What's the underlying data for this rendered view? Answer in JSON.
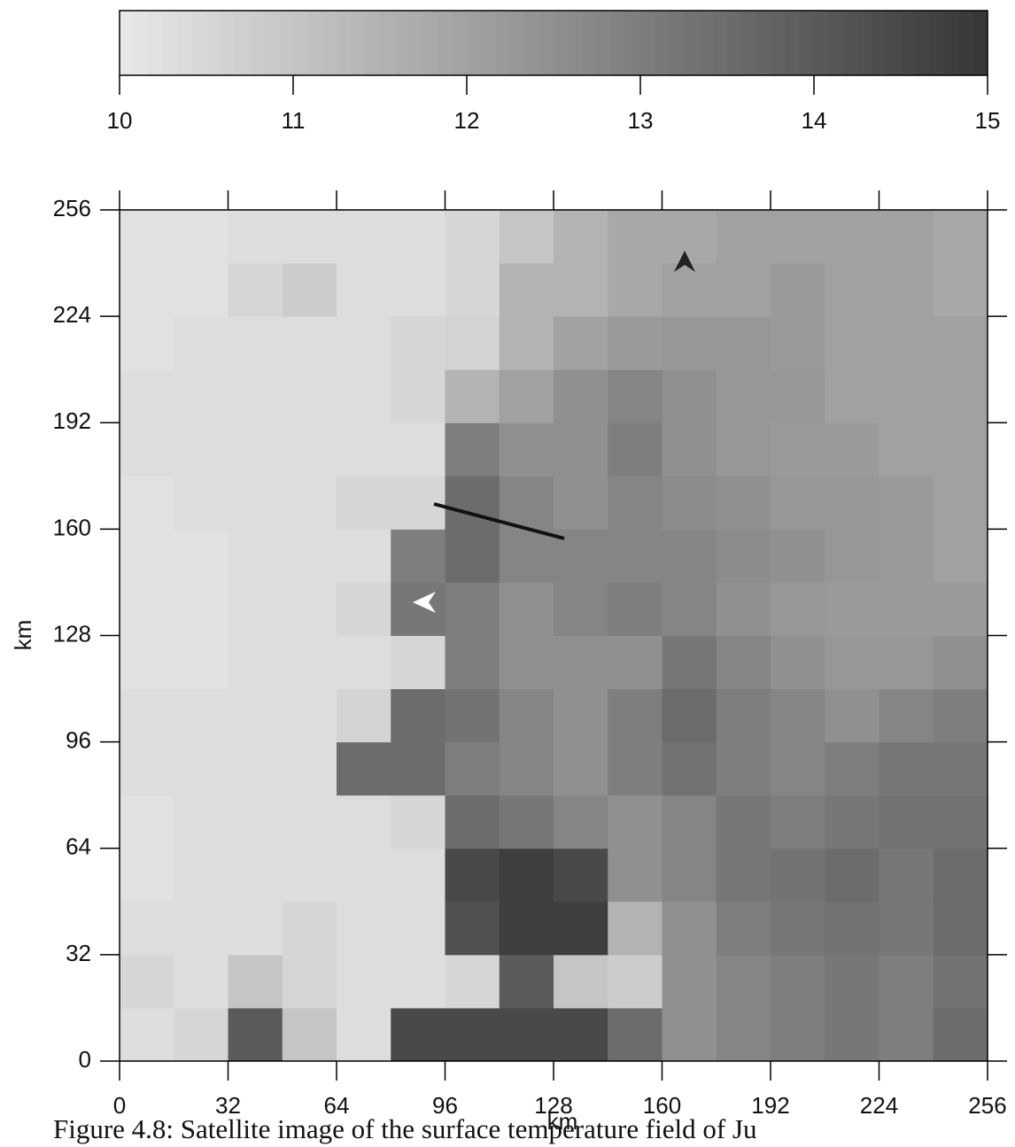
{
  "chart_data": {
    "type": "heatmap",
    "x_label": "km",
    "y_label": "km",
    "caption": "Figure 4.8: Satellite image of the surface temperature field of Ju",
    "xbins": [
      0,
      16,
      32,
      48,
      64,
      80,
      96,
      112,
      128,
      144,
      160,
      176,
      192,
      208,
      224,
      240,
      256
    ],
    "ybins": [
      0,
      16,
      32,
      48,
      64,
      80,
      96,
      112,
      128,
      144,
      160,
      176,
      192,
      208,
      224,
      240,
      256
    ],
    "xlim": [
      0,
      256
    ],
    "ylim": [
      0,
      256
    ],
    "xticks": [
      0,
      32,
      64,
      96,
      128,
      160,
      192,
      224,
      256
    ],
    "yticks": [
      0,
      32,
      64,
      96,
      128,
      160,
      192,
      224,
      256
    ],
    "colorbar_lim": [
      10,
      15
    ],
    "colorbar_ticks": [
      10,
      11,
      12,
      13,
      14,
      15
    ],
    "colormap": [
      "#e8e8e8",
      "#373737"
    ],
    "z": [
      [
        10.3,
        10.5,
        14,
        11,
        10.3,
        14.5,
        14.5,
        14.5,
        14.5,
        13.5,
        12.5,
        12.8,
        13,
        13.2,
        13,
        13.5
      ],
      [
        10.5,
        10.3,
        11,
        10.5,
        10.3,
        10.3,
        10.5,
        14,
        11,
        10.8,
        12.5,
        12.8,
        13,
        13.2,
        13,
        13.3
      ],
      [
        10.3,
        10.3,
        10.3,
        10.5,
        10.3,
        10.3,
        14.3,
        14.8,
        14.8,
        11.5,
        12.5,
        13,
        13.2,
        13.3,
        13.2,
        13.5
      ],
      [
        10.2,
        10.3,
        10.3,
        10.3,
        10.3,
        10.3,
        14.5,
        14.8,
        14.5,
        12.5,
        12.8,
        13.2,
        13.3,
        13.5,
        13.2,
        13.5
      ],
      [
        10.2,
        10.3,
        10.3,
        10.3,
        10.3,
        10.5,
        13.5,
        13.2,
        12.8,
        12.5,
        12.8,
        13.2,
        13,
        13.2,
        13.3,
        13.3
      ],
      [
        10.3,
        10.3,
        10.3,
        10.3,
        13.5,
        13.5,
        13,
        12.8,
        12.5,
        13,
        13.3,
        13,
        12.8,
        13,
        13.2,
        13.2
      ],
      [
        10.3,
        10.3,
        10.3,
        10.3,
        10.6,
        13.5,
        13.3,
        12.8,
        12.5,
        13,
        13.5,
        13,
        12.8,
        12.5,
        12.8,
        13
      ],
      [
        10.2,
        10.2,
        10.3,
        10.3,
        10.3,
        10.5,
        13,
        12.5,
        12.5,
        12.5,
        13.2,
        12.8,
        12.5,
        12.3,
        12.3,
        12.5
      ],
      [
        10.2,
        10.2,
        10.3,
        10.3,
        10.5,
        13.2,
        13,
        12.5,
        12.8,
        13,
        12.8,
        12.5,
        12.3,
        12.2,
        12.2,
        12.2
      ],
      [
        10.2,
        10.2,
        10.3,
        10.3,
        10.3,
        13,
        13.5,
        12.8,
        12.8,
        12.8,
        12.8,
        12.6,
        12.5,
        12.3,
        12.2,
        12
      ],
      [
        10.2,
        10.3,
        10.3,
        10.3,
        10.5,
        10.5,
        13.5,
        12.8,
        12.5,
        12.8,
        12.6,
        12.5,
        12.3,
        12.3,
        12.2,
        12
      ],
      [
        10.3,
        10.3,
        10.3,
        10.3,
        10.3,
        10.3,
        13,
        12.5,
        12.5,
        13,
        12.5,
        12.3,
        12.2,
        12.2,
        12,
        12
      ],
      [
        10.3,
        10.3,
        10.3,
        10.3,
        10.3,
        10.5,
        11.5,
        12,
        12.5,
        12.8,
        12.5,
        12.3,
        12.3,
        12,
        12,
        12
      ],
      [
        10.2,
        10.3,
        10.3,
        10.3,
        10.3,
        10.5,
        10.6,
        11.5,
        12,
        12.2,
        12.3,
        12.3,
        12.2,
        12,
        12,
        12
      ],
      [
        10.2,
        10.2,
        10.5,
        10.8,
        10.3,
        10.3,
        10.5,
        11.5,
        11.5,
        11.8,
        12,
        12,
        12.2,
        12,
        12,
        11.8
      ],
      [
        10.2,
        10.2,
        10.3,
        10.3,
        10.3,
        10.3,
        10.5,
        11,
        11.5,
        11.8,
        11.8,
        12,
        12,
        12,
        12,
        11.8
      ]
    ]
  }
}
